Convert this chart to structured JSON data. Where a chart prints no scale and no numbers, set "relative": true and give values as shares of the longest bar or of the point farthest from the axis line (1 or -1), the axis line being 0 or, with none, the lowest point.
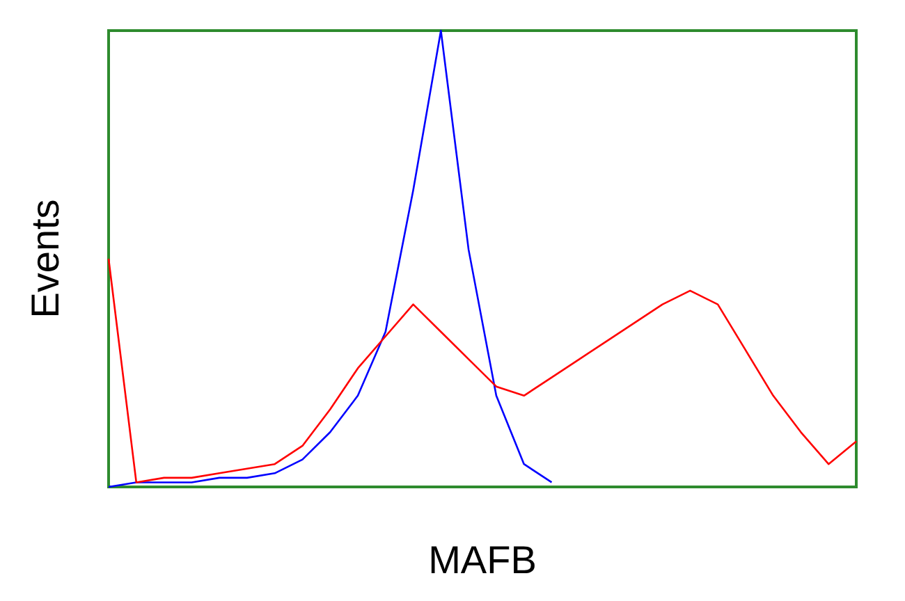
{
  "chart_data": {
    "type": "line",
    "relative": true,
    "xlabel": "MAFB",
    "ylabel": "Events",
    "grid": false,
    "marker": "none",
    "line_style": "solid",
    "categories": [
      null,
      null,
      null,
      null,
      null,
      null,
      null,
      null,
      null,
      null,
      null,
      null,
      null,
      null,
      null,
      null,
      null,
      null,
      null,
      null,
      null,
      null,
      null,
      null,
      null,
      null,
      null,
      null
    ],
    "series": [
      {
        "color": "#0000ff",
        "values": [
          0,
          0.01,
          0.01,
          0.01,
          0.02,
          0.02,
          0.03,
          0.06,
          0.12,
          0.2,
          0.34,
          0.65,
          1,
          0.52,
          0.2,
          0.05,
          0.01,
          null,
          null,
          null,
          null,
          null,
          null,
          null,
          null,
          null,
          null,
          null
        ]
      },
      {
        "color": "#ff0000",
        "values": [
          0.5,
          0.01,
          0.02,
          0.02,
          0.03,
          0.04,
          0.05,
          0.09,
          0.17,
          0.26,
          0.33,
          0.4,
          0.34,
          0.28,
          0.22,
          0.2,
          0.24,
          0.28,
          0.32,
          0.36,
          0.4,
          0.43,
          0.4,
          0.3,
          0.2,
          0.12,
          0.05,
          0.1
        ]
      }
    ]
  }
}
